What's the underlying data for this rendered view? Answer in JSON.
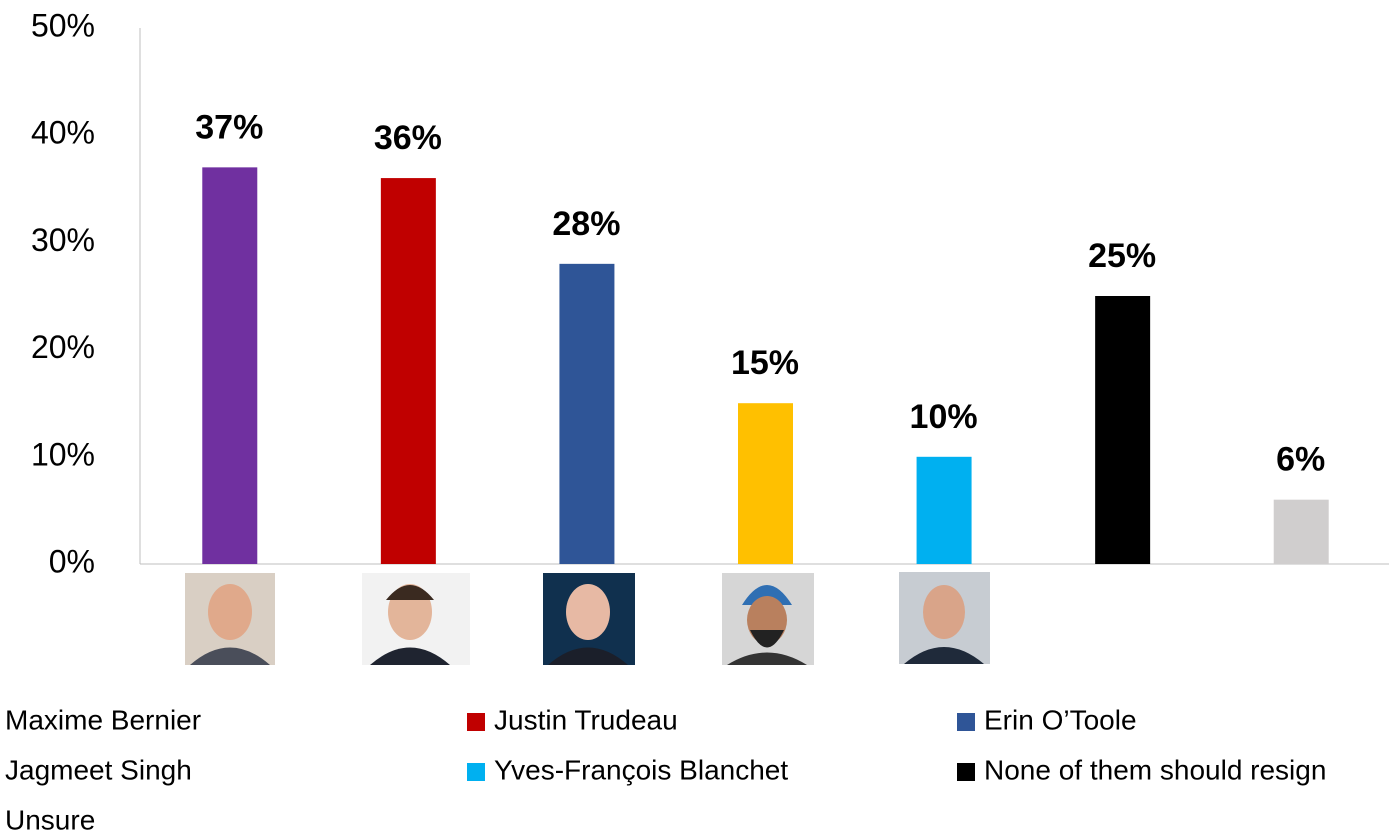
{
  "chart_data": {
    "type": "bar",
    "series": [
      {
        "name": "Maxime Bernier",
        "color": "#7030a0",
        "values": [
          37
        ],
        "value_labels": [
          "37%"
        ]
      },
      {
        "name": "Justin Trudeau",
        "color": "#c00000",
        "values": [
          36
        ],
        "value_labels": [
          "36%"
        ]
      },
      {
        "name": "Erin O’Toole",
        "color": "#2f5597",
        "values": [
          28
        ],
        "value_labels": [
          "28%"
        ]
      },
      {
        "name": "Jagmeet Singh",
        "color": "#ffc000",
        "values": [
          15
        ],
        "value_labels": [
          "15%"
        ]
      },
      {
        "name": "Yves-François Blanchet",
        "color": "#00b0f0",
        "values": [
          10
        ],
        "value_labels": [
          "10%"
        ]
      },
      {
        "name": "None of them should resign",
        "color": "#000000",
        "values": [
          25
        ],
        "value_labels": [
          "25%"
        ]
      },
      {
        "name": "Unsure",
        "color": "#d0cece",
        "values": [
          6
        ],
        "value_labels": [
          "6%"
        ]
      }
    ],
    "ylim": [
      0,
      50
    ],
    "yticks": [
      {
        "value": 0,
        "label": "0%"
      },
      {
        "value": 10,
        "label": "10%"
      },
      {
        "value": 20,
        "label": "20%"
      },
      {
        "value": 30,
        "label": "30%"
      },
      {
        "value": 40,
        "label": "40%"
      },
      {
        "value": 50,
        "label": "50%"
      }
    ],
    "grid": false
  }
}
